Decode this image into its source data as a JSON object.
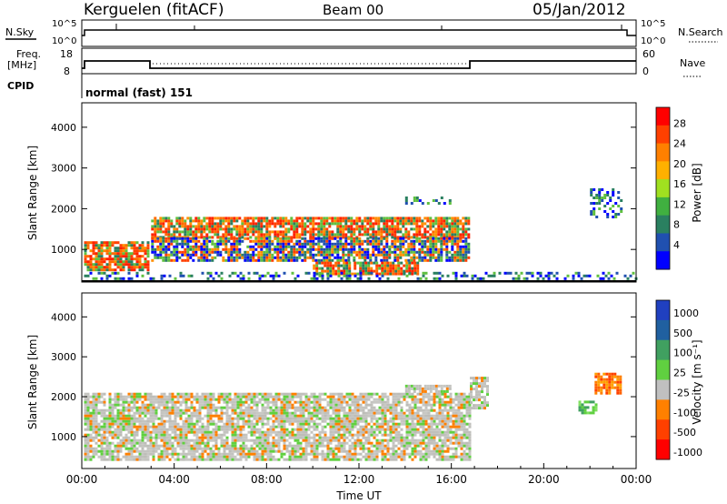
{
  "header": {
    "station": "Kerguelen (fitACF)",
    "beam": "Beam 00",
    "date": "05/Jan/2012"
  },
  "top_panels": {
    "nsky_label": "N.Sky",
    "nsky_ticks": [
      "10^5",
      "10^0"
    ],
    "nsearch_label": "N.Search",
    "nsearch_ticks": [
      "10^5",
      "10^0"
    ],
    "freq_label_1": "Freq.",
    "freq_label_2": "[MHz]",
    "freq_ticks": [
      "18",
      "8"
    ],
    "nave_label": "Nave",
    "nave_ticks": [
      "60",
      "0"
    ],
    "cpid_label": "CPID",
    "cpid_value": "normal (fast) 151"
  },
  "chart_data": [
    {
      "type": "heatmap",
      "name": "power",
      "ylabel": "Slant Range [km]",
      "xlabel": "",
      "yticks": [
        "4000",
        "3000",
        "2000",
        "1000"
      ],
      "ylim": [
        200,
        4600
      ],
      "xlim_hours": [
        0,
        24
      ],
      "colorbar_label": "Power [dB]",
      "colorbar_ticks": [
        "28",
        "24",
        "20",
        "16",
        "12",
        "8",
        "4"
      ],
      "colorbar_colors": [
        "#ff0000",
        "#ff4000",
        "#ff8000",
        "#ffb000",
        "#a0e020",
        "#40b040",
        "#2a8060",
        "#2050b0",
        "#0000ff"
      ],
      "regions": [
        {
          "t0": 0.1,
          "t1": 2.9,
          "r0": 500,
          "r1": 1200,
          "level": "high"
        },
        {
          "t0": 3.0,
          "t1": 16.8,
          "r0": 1300,
          "r1": 1800,
          "level": "high"
        },
        {
          "t0": 3.0,
          "t1": 16.8,
          "r0": 700,
          "r1": 1300,
          "level": "mid"
        },
        {
          "t0": 10.0,
          "t1": 14.5,
          "r0": 400,
          "r1": 700,
          "level": "high"
        },
        {
          "t0": 0.1,
          "t1": 24.0,
          "r0": 250,
          "r1": 450,
          "level": "low"
        },
        {
          "t0": 14.0,
          "t1": 16.0,
          "r0": 2100,
          "r1": 2300,
          "level": "low"
        },
        {
          "t0": 22.0,
          "t1": 23.3,
          "r0": 1800,
          "r1": 2500,
          "level": "low"
        }
      ]
    },
    {
      "type": "heatmap",
      "name": "velocity",
      "ylabel": "Slant Range [km]",
      "xlabel": "Time UT",
      "yticks": [
        "4000",
        "3000",
        "2000",
        "1000"
      ],
      "ylim": [
        200,
        4600
      ],
      "xticks": [
        "00:00",
        "04:00",
        "08:00",
        "12:00",
        "16:00",
        "20:00",
        "00:00"
      ],
      "xlim_hours": [
        0,
        24
      ],
      "colorbar_label": "Velocity [m s⁻¹]",
      "colorbar_ticks": [
        "1000",
        "500",
        "100",
        "25",
        "-25",
        "-100",
        "-500",
        "-1000"
      ],
      "colorbar_colors": [
        "#2040c0",
        "#2060a0",
        "#40a060",
        "#60d040",
        "#c0c0c0",
        "#ff8000",
        "#ff4000",
        "#ff0000"
      ],
      "regions": [
        {
          "t0": 0.1,
          "t1": 16.8,
          "r0": 400,
          "r1": 2100,
          "level": "ground"
        },
        {
          "t0": 14.0,
          "t1": 16.0,
          "r0": 2100,
          "r1": 2300,
          "level": "ground"
        },
        {
          "t0": 16.8,
          "t1": 17.6,
          "r0": 1700,
          "r1": 2500,
          "level": "ground"
        },
        {
          "t0": 22.2,
          "t1": 23.3,
          "r0": 2100,
          "r1": 2600,
          "level": "neg"
        },
        {
          "t0": 21.5,
          "t1": 22.3,
          "r0": 1600,
          "r1": 1900,
          "level": "pos"
        }
      ]
    }
  ]
}
